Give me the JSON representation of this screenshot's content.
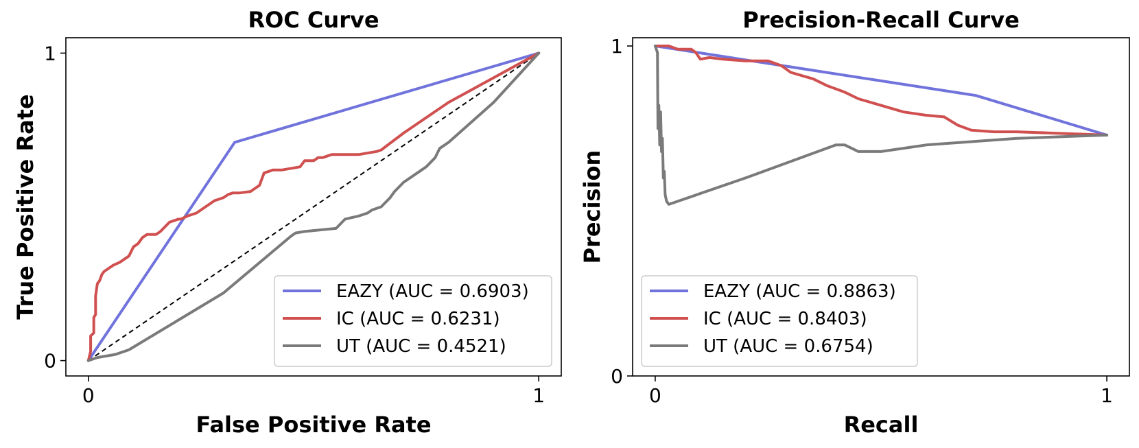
{
  "chart_data": [
    {
      "type": "line",
      "title": "ROC Curve",
      "xlabel": "False Positive Rate",
      "ylabel": "True Positive Rate",
      "xlim": [
        -0.05,
        1.05
      ],
      "ylim": [
        -0.05,
        1.05
      ],
      "xticks": [
        {
          "value": 0,
          "label": "0"
        },
        {
          "value": 1,
          "label": "1"
        }
      ],
      "yticks": [
        {
          "value": 0,
          "label": "0"
        },
        {
          "value": 1,
          "label": "1"
        }
      ],
      "legend_position": "lower-right",
      "reference_line": {
        "name": "chance",
        "style": "dashed",
        "color": "#000000",
        "x": [
          0,
          1
        ],
        "y": [
          0,
          1
        ]
      },
      "series": [
        {
          "name": "EAZY",
          "legend": "EAZY (AUC = 0.6903)",
          "color": "#7173dc",
          "x": [
            0,
            0.325,
            1
          ],
          "y": [
            0,
            0.71,
            1
          ]
        },
        {
          "name": "IC",
          "legend": "IC (AUC = 0.6231)",
          "color": "#d05050",
          "x": [
            0,
            0.005,
            0.005,
            0.012,
            0.012,
            0.016,
            0.016,
            0.02,
            0.025,
            0.03,
            0.035,
            0.045,
            0.055,
            0.07,
            0.09,
            0.1,
            0.11,
            0.12,
            0.13,
            0.135,
            0.15,
            0.16,
            0.18,
            0.2,
            0.205,
            0.22,
            0.24,
            0.26,
            0.28,
            0.3,
            0.31,
            0.32,
            0.335,
            0.36,
            0.38,
            0.39,
            0.41,
            0.43,
            0.47,
            0.48,
            0.5,
            0.51,
            0.52,
            0.54,
            0.6,
            0.64,
            0.65,
            0.7,
            0.75,
            0.8,
            0.85,
            0.9,
            0.95,
            1
          ],
          "y": [
            0,
            0.03,
            0.08,
            0.09,
            0.14,
            0.15,
            0.21,
            0.25,
            0.26,
            0.28,
            0.29,
            0.3,
            0.31,
            0.32,
            0.34,
            0.37,
            0.38,
            0.4,
            0.41,
            0.41,
            0.41,
            0.42,
            0.45,
            0.46,
            0.46,
            0.47,
            0.48,
            0.5,
            0.52,
            0.53,
            0.54,
            0.545,
            0.545,
            0.55,
            0.57,
            0.61,
            0.62,
            0.62,
            0.63,
            0.65,
            0.65,
            0.66,
            0.66,
            0.67,
            0.67,
            0.68,
            0.685,
            0.74,
            0.79,
            0.84,
            0.88,
            0.92,
            0.96,
            1
          ]
        },
        {
          "name": "UT",
          "legend": "UT (AUC = 0.4521)",
          "color": "#7a7a7a",
          "x": [
            0,
            0.02,
            0.04,
            0.06,
            0.08,
            0.09,
            0.3,
            0.45,
            0.46,
            0.48,
            0.55,
            0.57,
            0.6,
            0.62,
            0.63,
            0.65,
            0.67,
            0.68,
            0.7,
            0.72,
            0.73,
            0.75,
            0.77,
            0.78,
            0.8,
            0.9,
            1
          ],
          "y": [
            0,
            0.01,
            0.015,
            0.02,
            0.03,
            0.035,
            0.22,
            0.405,
            0.415,
            0.42,
            0.43,
            0.46,
            0.47,
            0.48,
            0.49,
            0.5,
            0.53,
            0.55,
            0.58,
            0.6,
            0.61,
            0.63,
            0.66,
            0.69,
            0.71,
            0.84,
            1
          ]
        }
      ]
    },
    {
      "type": "line",
      "title": "Precision-Recall Curve",
      "xlabel": "Recall",
      "ylabel": "Precision",
      "xlim": [
        -0.05,
        1.05
      ],
      "ylim": [
        0,
        1.025
      ],
      "xticks": [
        {
          "value": 0,
          "label": "0"
        },
        {
          "value": 1,
          "label": "1"
        }
      ],
      "yticks": [
        {
          "value": 0,
          "label": "0"
        },
        {
          "value": 1,
          "label": "1"
        }
      ],
      "legend_position": "lower-left",
      "series": [
        {
          "name": "EAZY",
          "legend": "EAZY (AUC = 0.8863)",
          "color": "#7173dc",
          "x": [
            0,
            0.71,
            1
          ],
          "y": [
            1,
            0.85,
            0.73
          ]
        },
        {
          "name": "IC",
          "legend": "IC (AUC = 0.8403)",
          "color": "#d05050",
          "x": [
            0,
            0.03,
            0.05,
            0.08,
            0.09,
            0.1,
            0.12,
            0.15,
            0.2,
            0.25,
            0.28,
            0.3,
            0.35,
            0.38,
            0.42,
            0.45,
            0.55,
            0.6,
            0.64,
            0.67,
            0.7,
            0.75,
            0.8,
            1
          ],
          "y": [
            1,
            1,
            0.99,
            0.99,
            0.98,
            0.96,
            0.965,
            0.96,
            0.955,
            0.955,
            0.94,
            0.92,
            0.9,
            0.88,
            0.86,
            0.84,
            0.8,
            0.79,
            0.785,
            0.76,
            0.745,
            0.74,
            0.74,
            0.73
          ]
        },
        {
          "name": "UT",
          "legend": "UT (AUC = 0.6754)",
          "color": "#7a7a7a",
          "x": [
            0,
            0.005,
            0.006,
            0.008,
            0.01,
            0.012,
            0.014,
            0.016,
            0.018,
            0.02,
            0.022,
            0.025,
            0.03,
            0.2,
            0.4,
            0.42,
            0.45,
            0.5,
            0.55,
            0.6,
            0.7,
            0.8,
            0.9,
            1
          ],
          "y": [
            1,
            0.98,
            0.75,
            0.82,
            0.7,
            0.8,
            0.68,
            0.72,
            0.6,
            0.62,
            0.55,
            0.53,
            0.52,
            0.6,
            0.7,
            0.7,
            0.68,
            0.68,
            0.69,
            0.7,
            0.71,
            0.72,
            0.725,
            0.73
          ]
        }
      ]
    }
  ]
}
